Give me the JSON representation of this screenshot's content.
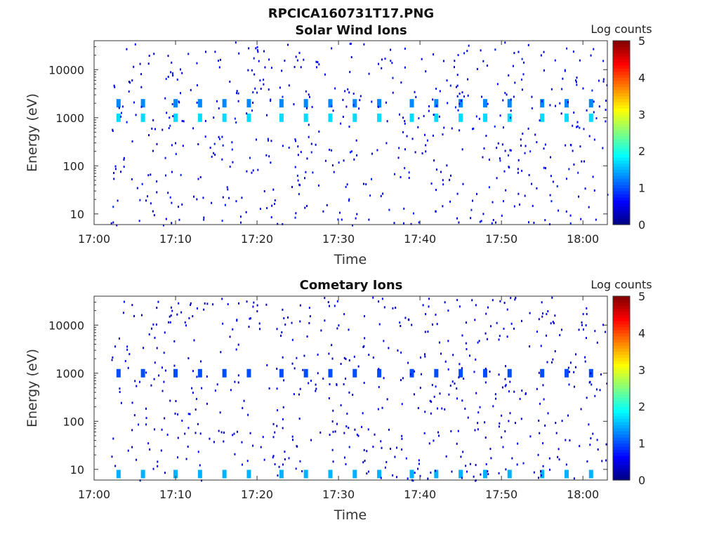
{
  "figure": {
    "title": "RPCICA160731T17.PNG"
  },
  "colormap": [
    "#00007f",
    "#0000ff",
    "#007fff",
    "#00ffff",
    "#7fff7f",
    "#ffff00",
    "#ff7f00",
    "#ff0000",
    "#7f0000"
  ],
  "chart_data": [
    {
      "type": "heatmap",
      "title": "Solar Wind Ions",
      "xlabel": "Time",
      "ylabel": "Energy (eV)",
      "x_ticks": [
        "17:00",
        "17:10",
        "17:20",
        "17:30",
        "17:40",
        "17:50",
        "18:00"
      ],
      "x_range": [
        "17:00",
        "18:03"
      ],
      "y_scale": "log",
      "y_ticks": [
        10,
        100,
        1000,
        10000
      ],
      "y_range": [
        6,
        40000
      ],
      "colorbar": {
        "label": "Log counts",
        "range": [
          0,
          5
        ],
        "ticks": [
          0,
          1,
          2,
          3,
          4,
          5
        ]
      },
      "sweep_times": [
        "17:03",
        "17:06",
        "17:10",
        "17:13",
        "17:16",
        "17:19",
        "17:23",
        "17:26",
        "17:29",
        "17:32",
        "17:35",
        "17:39",
        "17:42",
        "17:45",
        "17:48",
        "17:51",
        "17:55",
        "17:58",
        "18:01"
      ],
      "peaks": [
        {
          "energy_eV": 1000,
          "log_counts": 1.7
        },
        {
          "energy_eV": 2000,
          "log_counts": 1.3
        }
      ],
      "background_log_counts": 0.3
    },
    {
      "type": "heatmap",
      "title": "Cometary Ions",
      "xlabel": "Time",
      "ylabel": "Energy (eV)",
      "x_ticks": [
        "17:00",
        "17:10",
        "17:20",
        "17:30",
        "17:40",
        "17:50",
        "18:00"
      ],
      "x_range": [
        "17:00",
        "18:03"
      ],
      "y_scale": "log",
      "y_ticks": [
        10,
        100,
        1000,
        10000
      ],
      "y_range": [
        6,
        40000
      ],
      "colorbar": {
        "label": "Log counts",
        "range": [
          0,
          5
        ],
        "ticks": [
          0,
          1,
          2,
          3,
          4,
          5
        ]
      },
      "sweep_times": [
        "17:03",
        "17:06",
        "17:10",
        "17:13",
        "17:16",
        "17:19",
        "17:23",
        "17:26",
        "17:29",
        "17:32",
        "17:35",
        "17:39",
        "17:42",
        "17:45",
        "17:48",
        "17:51",
        "17:55",
        "17:58",
        "18:01"
      ],
      "peaks": [
        {
          "energy_eV": 1000,
          "log_counts": 1.0
        },
        {
          "energy_eV": 8,
          "log_counts": 1.5
        }
      ],
      "background_log_counts": 0.2
    }
  ]
}
